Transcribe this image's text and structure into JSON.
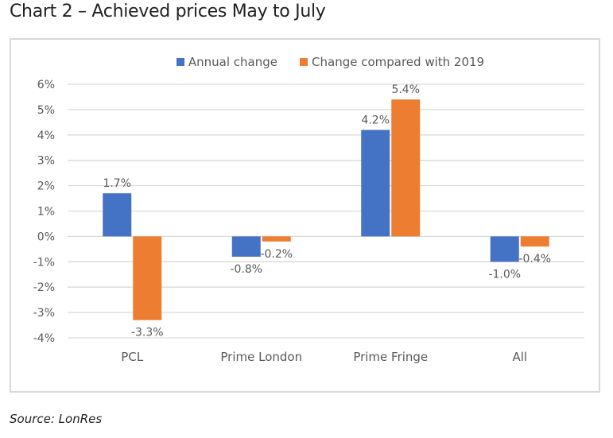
{
  "page": {
    "title": "Chart 2 – Achieved prices May to July",
    "source": "Source: LonRes"
  },
  "chart_data": {
    "type": "bar",
    "title": "Chart 2 – Achieved prices May to July",
    "xlabel": "",
    "ylabel": "",
    "categories": [
      "PCL",
      "Prime London",
      "Prime Fringe",
      "All"
    ],
    "series": [
      {
        "name": "Annual change",
        "color": "#4472c4",
        "values": [
          1.7,
          -0.8,
          4.2,
          -1.0
        ],
        "labels": [
          "1.7%",
          "-0.8%",
          "4.2%",
          "-1.0%"
        ]
      },
      {
        "name": "Change compared with 2019",
        "color": "#ed7d31",
        "values": [
          -3.3,
          -0.2,
          5.4,
          -0.4
        ],
        "labels": [
          "-3.3%",
          "-0.2%",
          "5.4%",
          "-0.4%"
        ]
      }
    ],
    "ylim": [
      -4,
      6
    ],
    "yticks": [
      6,
      5,
      4,
      3,
      2,
      1,
      0,
      -1,
      -2,
      -3,
      -4
    ],
    "ytick_labels": [
      "6%",
      "5%",
      "4%",
      "3%",
      "2%",
      "1%",
      "0%",
      "-1%",
      "-2%",
      "-3%",
      "-4%"
    ],
    "grid": true,
    "legend_position": "top-center",
    "gridline_color": "#d9d9d9",
    "text_color": "#595959"
  }
}
